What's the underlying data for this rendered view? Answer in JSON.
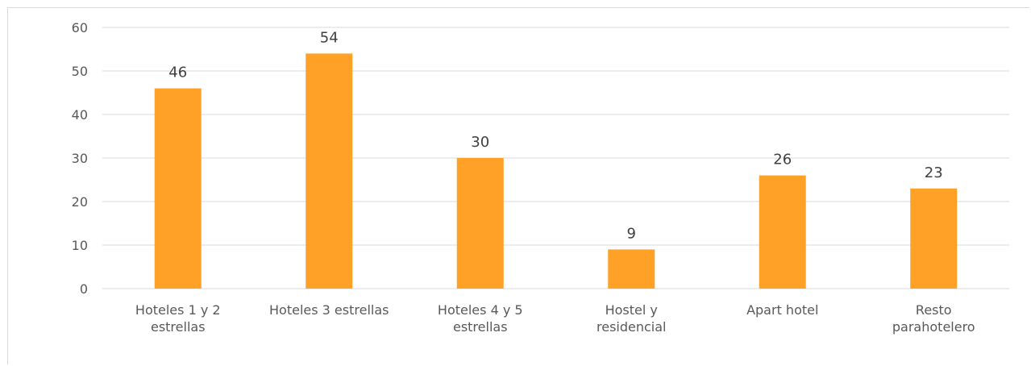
{
  "chart_data": {
    "type": "bar",
    "categories": [
      [
        "Hoteles 1 y 2",
        "estrellas"
      ],
      [
        "Hoteles 3 estrellas"
      ],
      [
        "Hoteles 4 y 5",
        "estrellas"
      ],
      [
        "Hostel y",
        "residencial"
      ],
      [
        "Apart hotel"
      ],
      [
        "Resto",
        "parahotelero"
      ]
    ],
    "values": [
      46,
      54,
      30,
      9,
      26,
      23
    ],
    "title": "",
    "xlabel": "",
    "ylabel": "",
    "ylim": [
      0,
      60
    ],
    "yticks": [
      0,
      10,
      20,
      30,
      40,
      50,
      60
    ],
    "grid": true,
    "legend": "none",
    "bar_color": "#FFA126"
  }
}
